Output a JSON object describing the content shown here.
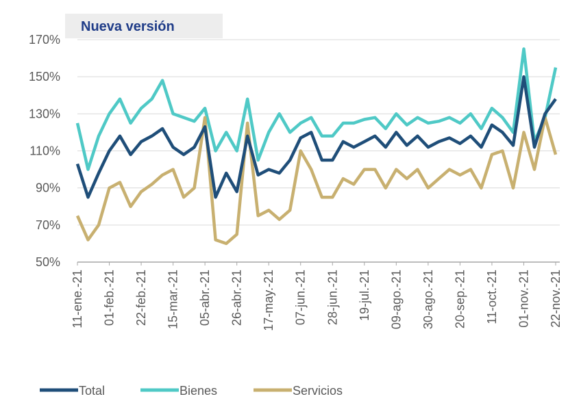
{
  "chart_data": {
    "type": "line",
    "title": "Nueva versión",
    "categories": [
      "11-ene.-21",
      null,
      null,
      "01-feb.-21",
      null,
      null,
      "22-feb.-21",
      null,
      null,
      "15-mar.-21",
      null,
      null,
      "05-abr.-21",
      null,
      null,
      "26-abr.-21",
      null,
      null,
      "17-may.-21",
      null,
      null,
      "07-jun.-21",
      null,
      null,
      "28-jun.-21",
      null,
      null,
      "19-jul.-21",
      null,
      null,
      "09-ago.-21",
      null,
      null,
      "30-ago.-21",
      null,
      null,
      "20-sep.-21",
      null,
      null,
      "11-oct.-21",
      null,
      null,
      "01-nov.-21",
      null,
      null,
      "22-nov.-21"
    ],
    "series": [
      {
        "name": "Total",
        "color": "#1f4e79",
        "values": [
          103,
          85,
          98,
          110,
          118,
          108,
          115,
          118,
          122,
          112,
          108,
          112,
          123,
          85,
          98,
          88,
          118,
          97,
          100,
          98,
          105,
          117,
          120,
          105,
          105,
          115,
          112,
          115,
          118,
          112,
          120,
          113,
          118,
          112,
          115,
          117,
          114,
          118,
          112,
          124,
          120,
          113,
          150,
          112,
          130,
          138
        ]
      },
      {
        "name": "Bienes",
        "color": "#4fc9c6",
        "values": [
          125,
          100,
          118,
          130,
          138,
          125,
          133,
          138,
          148,
          130,
          128,
          126,
          133,
          110,
          120,
          110,
          138,
          105,
          120,
          130,
          120,
          125,
          128,
          118,
          118,
          125,
          125,
          127,
          128,
          122,
          130,
          124,
          128,
          125,
          126,
          128,
          125,
          130,
          122,
          133,
          128,
          120,
          165,
          115,
          128,
          155
        ]
      },
      {
        "name": "Servicios",
        "color": "#c8b070",
        "values": [
          75,
          62,
          70,
          90,
          93,
          80,
          88,
          92,
          97,
          100,
          85,
          90,
          128,
          62,
          60,
          65,
          125,
          75,
          78,
          73,
          78,
          110,
          100,
          85,
          85,
          95,
          92,
          100,
          100,
          90,
          100,
          95,
          100,
          90,
          95,
          100,
          97,
          100,
          90,
          108,
          110,
          90,
          120,
          100,
          128,
          108
        ]
      }
    ],
    "ylim": [
      50,
      170
    ],
    "yticks": [
      {
        "value": 50,
        "label": "50%"
      },
      {
        "value": 70,
        "label": "70%"
      },
      {
        "value": 90,
        "label": "90%"
      },
      {
        "value": 110,
        "label": "110%"
      },
      {
        "value": 130,
        "label": "130%"
      },
      {
        "value": 150,
        "label": "150%"
      },
      {
        "value": 170,
        "label": "170%"
      }
    ],
    "grid": true,
    "legend": "bottom"
  }
}
